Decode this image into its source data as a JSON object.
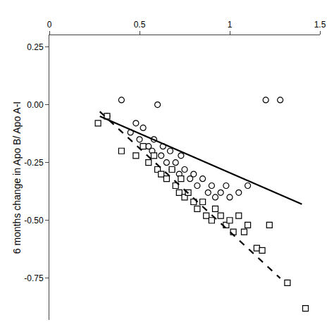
{
  "chart_data": {
    "type": "scatter",
    "ylabel": "6 months change in Apo B/ Apo A-I",
    "series": [
      {
        "type": "scatter",
        "marker": "circle",
        "color": "#000000",
        "x": [
          0.32,
          0.4,
          0.45,
          0.48,
          0.5,
          0.52,
          0.55,
          0.57,
          0.58,
          0.6,
          0.62,
          0.63,
          0.65,
          0.67,
          0.68,
          0.7,
          0.72,
          0.73,
          0.75,
          0.78,
          0.8,
          0.82,
          0.85,
          0.88,
          0.9,
          0.92,
          0.95,
          0.98,
          1.0,
          1.05,
          1.1,
          1.2,
          1.28
        ],
        "values": [
          -0.05,
          0.02,
          -0.12,
          -0.08,
          -0.15,
          -0.1,
          -0.18,
          -0.2,
          -0.15,
          0.0,
          -0.22,
          -0.18,
          -0.25,
          -0.2,
          -0.28,
          -0.25,
          -0.3,
          -0.22,
          -0.28,
          -0.32,
          -0.3,
          -0.35,
          -0.32,
          -0.38,
          -0.35,
          -0.4,
          -0.38,
          -0.35,
          -0.4,
          -0.38,
          -0.35,
          0.02,
          0.02
        ]
      },
      {
        "type": "scatter",
        "marker": "square",
        "color": "#000000",
        "x": [
          0.27,
          0.32,
          0.4,
          0.48,
          0.52,
          0.55,
          0.58,
          0.6,
          0.62,
          0.65,
          0.68,
          0.7,
          0.72,
          0.73,
          0.75,
          0.77,
          0.8,
          0.82,
          0.85,
          0.87,
          0.9,
          0.92,
          0.95,
          0.98,
          1.0,
          1.02,
          1.05,
          1.08,
          1.1,
          1.15,
          1.18,
          1.22,
          1.32,
          1.42
        ],
        "values": [
          -0.08,
          -0.05,
          -0.2,
          -0.22,
          -0.18,
          -0.25,
          -0.22,
          -0.28,
          -0.3,
          -0.32,
          -0.28,
          -0.35,
          -0.38,
          -0.32,
          -0.4,
          -0.38,
          -0.42,
          -0.45,
          -0.42,
          -0.48,
          -0.5,
          -0.45,
          -0.48,
          -0.52,
          -0.5,
          -0.55,
          -0.48,
          -0.55,
          -0.52,
          -0.62,
          -0.63,
          -0.52,
          -0.77,
          -0.88
        ]
      },
      {
        "type": "line",
        "line_style": "solid",
        "color": "#000000",
        "x": [
          0.28,
          1.4
        ],
        "values": [
          -0.05,
          -0.43
        ]
      },
      {
        "type": "line",
        "line_style": "dashed",
        "color": "#000000",
        "x": [
          0.28,
          1.28
        ],
        "values": [
          -0.03,
          -0.75
        ]
      }
    ],
    "xlim": [
      0,
      1.5
    ],
    "ylim": [
      -0.93,
      0.3
    ],
    "xticks": [
      0,
      0.5,
      1,
      1.5
    ],
    "yticks": [
      0.25,
      {
        "value": 0,
        "label": "0.00"
      },
      -0.25,
      {
        "value": -0.5,
        "label": "-0.50"
      },
      -0.75
    ],
    "grid": false
  }
}
